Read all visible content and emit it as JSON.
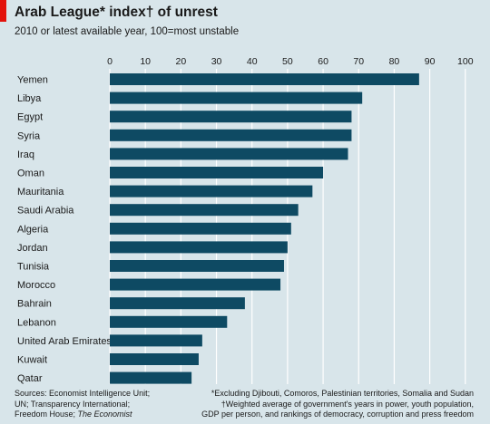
{
  "title": "Arab League* index† of unrest",
  "subtitle": "2010 or latest available year, 100=most unstable",
  "sources": {
    "line1": "Sources: Economist Intelligence Unit;",
    "line2": "UN; Transparency International;",
    "line3_plain": "Freedom House; ",
    "line3_italic": "The Economist"
  },
  "notes": {
    "line1": "*Excluding Djibouti, Comoros, Palestinian territories, Somalia and Sudan",
    "line2": "†Weighted average of government's years in power, youth population,",
    "line3": "GDP per person, and rankings of democracy, corruption and press freedom"
  },
  "colors": {
    "bar": "#0e4a63",
    "background": "#d8e5ea",
    "gridline": "#ffffff",
    "accent": "#e3120b"
  },
  "chart_data": {
    "type": "bar",
    "orientation": "horizontal",
    "categories": [
      "Yemen",
      "Libya",
      "Egypt",
      "Syria",
      "Iraq",
      "Oman",
      "Mauritania",
      "Saudi Arabia",
      "Algeria",
      "Jordan",
      "Tunisia",
      "Morocco",
      "Bahrain",
      "Lebanon",
      "United Arab Emirates",
      "Kuwait",
      "Qatar"
    ],
    "values": [
      87,
      71,
      68,
      68,
      67,
      60,
      57,
      53,
      51,
      50,
      49,
      48,
      38,
      33,
      26,
      25,
      23
    ],
    "xlim": [
      0,
      100
    ],
    "xticks": [
      0,
      10,
      20,
      30,
      40,
      50,
      60,
      70,
      80,
      90,
      100
    ],
    "axis_position": "top",
    "grid": true
  }
}
